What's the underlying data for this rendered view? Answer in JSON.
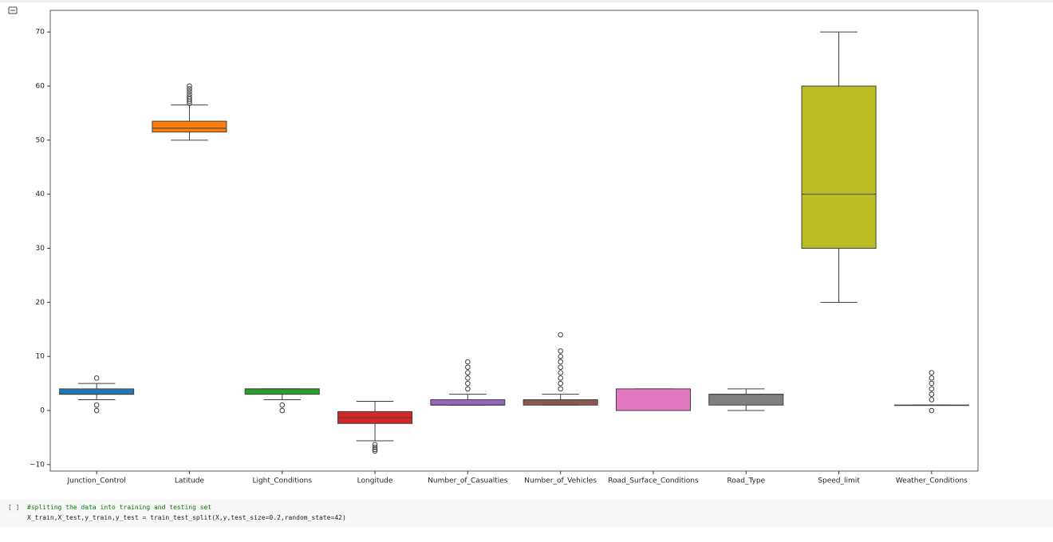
{
  "chart_data": {
    "type": "box",
    "categories": [
      "Junction_Control",
      "Latitude",
      "Light_Conditions",
      "Longitude",
      "Number_of_Casualties",
      "Number_of_Vehicles",
      "Road_Surface_Conditions",
      "Road_Type",
      "Speed_limit",
      "Weather_Conditions"
    ],
    "boxes": [
      {
        "color": "#1f77b4",
        "whislo": 2,
        "q1": 3,
        "median": 3,
        "q3": 4,
        "whishi": 5,
        "fliers": [
          6,
          1,
          0
        ]
      },
      {
        "color": "#ff7f0e",
        "whislo": 50,
        "q1": 51.5,
        "median": 52.2,
        "q3": 53.5,
        "whishi": 56.5,
        "fliers": [
          56.8,
          57.2,
          57.6,
          58,
          58.5,
          59,
          59.5,
          60
        ]
      },
      {
        "color": "#2ca02c",
        "whislo": 2,
        "q1": 3,
        "median": 4,
        "q3": 4,
        "whishi": 4,
        "fliers": [
          1,
          0
        ]
      },
      {
        "color": "#d62728",
        "whislo": -5.6,
        "q1": -2.4,
        "median": -1.3,
        "q3": -0.2,
        "whishi": 1.7,
        "fliers": [
          -6.3,
          -6.8,
          -7.2,
          -7.5
        ]
      },
      {
        "color": "#9467bd",
        "whislo": 1,
        "q1": 1,
        "median": 1,
        "q3": 2,
        "whishi": 3,
        "fliers": [
          4,
          5,
          6,
          7,
          8,
          9
        ]
      },
      {
        "color": "#8c564b",
        "whislo": 1,
        "q1": 1,
        "median": 2,
        "q3": 2,
        "whishi": 3,
        "fliers": [
          4,
          5,
          6,
          7,
          8,
          9,
          10,
          11,
          14
        ]
      },
      {
        "color": "#e377c2",
        "whislo": 0,
        "q1": 0,
        "median": 0,
        "q3": 4,
        "whishi": 4,
        "fliers": []
      },
      {
        "color": "#7f7f7f",
        "whislo": 0,
        "q1": 1,
        "median": 3,
        "q3": 3,
        "whishi": 4,
        "fliers": []
      },
      {
        "color": "#bcbd22",
        "whislo": 20,
        "q1": 30,
        "median": 40,
        "q3": 60,
        "whishi": 70,
        "fliers": []
      },
      {
        "color": "#17becf",
        "whislo": 1,
        "q1": 1,
        "median": 1,
        "q3": 1,
        "whishi": 1,
        "fliers": [
          0,
          2,
          3,
          4,
          5,
          6,
          7
        ]
      }
    ],
    "ylim": [
      -11.2,
      74
    ],
    "yticks": [
      {
        "value": -10,
        "label": "−10"
      },
      0,
      10,
      20,
      30,
      40,
      50,
      60,
      70
    ]
  },
  "cells": [
    {
      "prompt": "[ ]",
      "comment": "#spliting the data into training and testing set",
      "code": "X_train,X_test,y_train,y_test = train_test_split(X,y,test_size=0.2,random_state=42)"
    }
  ]
}
